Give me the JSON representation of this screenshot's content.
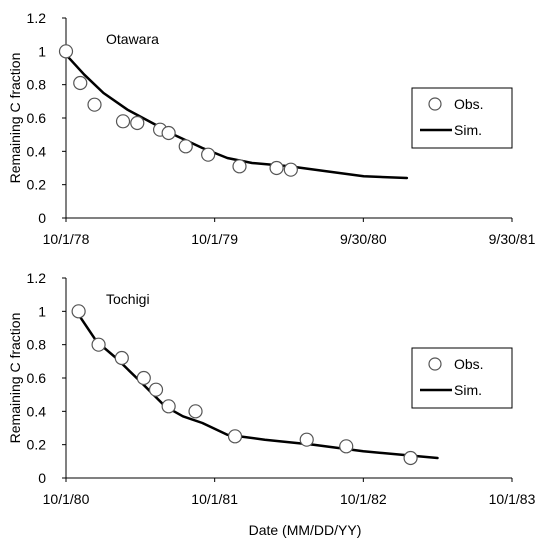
{
  "xlabel": "Date (MM/DD/YY)",
  "chart_data": [
    {
      "type": "scatter",
      "title": "Otawara",
      "ylabel": "Remaining C fraction",
      "x_ticks": [
        "10/1/78",
        "10/1/79",
        "9/30/80",
        "9/30/81"
      ],
      "xlim": [
        "1978-10-01",
        "1981-09-30"
      ],
      "ylim": [
        0,
        1.2
      ],
      "y_ticks": [
        "0",
        "0.2",
        "0.4",
        "0.6",
        "0.8",
        "1",
        "1.2"
      ],
      "y_tick_values": [
        0,
        0.2,
        0.4,
        0.6,
        0.8,
        1.0,
        1.2
      ],
      "grid": false,
      "legend_position": "right",
      "legend": [
        "Obs.",
        "Sim."
      ],
      "series": [
        {
          "name": "Obs.",
          "style": "markers",
          "x": [
            "1978-10-01",
            "1978-11-05",
            "1978-12-10",
            "1979-02-18",
            "1979-03-25",
            "1979-05-20",
            "1979-06-10",
            "1979-07-22",
            "1979-09-15",
            "1979-12-01",
            "1980-03-01",
            "1980-04-05"
          ],
          "y": [
            1.0,
            0.81,
            0.68,
            0.58,
            0.57,
            0.53,
            0.51,
            0.43,
            0.38,
            0.31,
            0.3,
            0.29
          ]
        },
        {
          "name": "Sim.",
          "style": "line",
          "x": [
            "1978-10-01",
            "1978-11-15",
            "1979-01-01",
            "1979-03-01",
            "1979-05-01",
            "1979-07-01",
            "1979-09-01",
            "1979-11-01",
            "1980-01-01",
            "1980-04-01",
            "1980-07-01",
            "1980-10-01",
            "1981-01-15"
          ],
          "y": [
            0.98,
            0.86,
            0.75,
            0.65,
            0.57,
            0.49,
            0.42,
            0.36,
            0.33,
            0.31,
            0.28,
            0.25,
            0.24
          ]
        }
      ]
    },
    {
      "type": "scatter",
      "title": "Tochigi",
      "ylabel": "Remaining C fraction",
      "x_ticks": [
        "10/1/80",
        "10/1/81",
        "10/1/82",
        "10/1/83"
      ],
      "xlim": [
        "1980-10-01",
        "1983-10-01"
      ],
      "ylim": [
        0,
        1.2
      ],
      "y_ticks": [
        "0",
        "0.2",
        "0.4",
        "0.6",
        "0.8",
        "1",
        "1.2"
      ],
      "y_tick_values": [
        0,
        0.2,
        0.4,
        0.6,
        0.8,
        1.0,
        1.2
      ],
      "grid": false,
      "legend_position": "right",
      "legend": [
        "Obs.",
        "Sim."
      ],
      "series": [
        {
          "name": "Obs.",
          "style": "markers",
          "x": [
            "1980-11-01",
            "1980-12-20",
            "1981-02-15",
            "1981-04-10",
            "1981-05-10",
            "1981-06-10",
            "1981-08-15",
            "1981-11-20",
            "1982-05-15",
            "1982-08-20",
            "1983-01-25"
          ],
          "y": [
            1.0,
            0.8,
            0.72,
            0.6,
            0.53,
            0.43,
            0.4,
            0.25,
            0.23,
            0.19,
            0.12
          ]
        },
        {
          "name": "Sim.",
          "style": "line",
          "x": [
            "1980-11-01",
            "1980-12-15",
            "1981-02-01",
            "1981-04-01",
            "1981-06-01",
            "1981-07-15",
            "1981-09-01",
            "1981-11-01",
            "1982-02-01",
            "1982-06-01",
            "1982-10-01",
            "1983-04-01"
          ],
          "y": [
            0.98,
            0.82,
            0.72,
            0.58,
            0.43,
            0.37,
            0.33,
            0.26,
            0.23,
            0.2,
            0.16,
            0.12
          ]
        }
      ]
    }
  ]
}
